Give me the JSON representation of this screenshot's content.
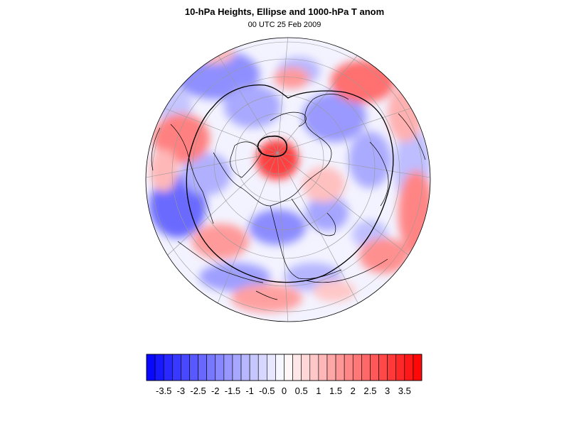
{
  "figure": {
    "title": "10-hPa Heights, Ellipse and 1000-hPa T anom",
    "subtitle": "00 UTC 25 Feb 2009"
  },
  "colorbar": {
    "labels": [
      "-3.5",
      "-3",
      "-2.5",
      "-2",
      "-1.5",
      "-1",
      "-0.5",
      "0",
      "0.5",
      "1",
      "1.5",
      "2",
      "2.5",
      "3",
      "3.5"
    ],
    "min": -4,
    "max": 4,
    "step": 0.25,
    "negative_color": "#0000ff",
    "positive_color": "#ff0000",
    "neutral_color": "#ffffff"
  },
  "map": {
    "projection": "orthographic-north-polar",
    "field": "1000-hPa temperature anomaly (shaded)",
    "overlay": "10-hPa height contours and vortex ellipse",
    "coastline_color": "#000000",
    "graticule_color": "#999999"
  }
}
